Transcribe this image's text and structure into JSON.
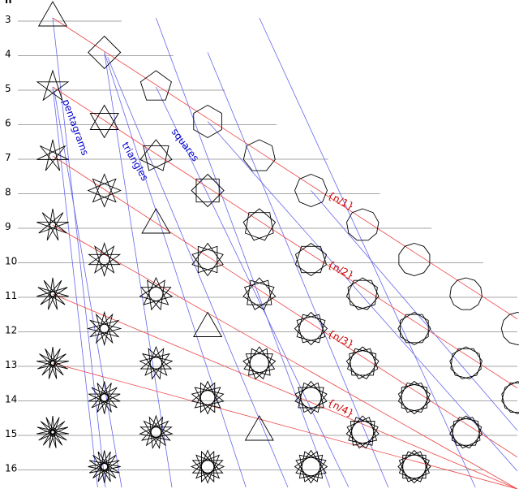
{
  "header": {
    "column_label": "n"
  },
  "rows": [
    {
      "n": 3,
      "label": "3",
      "figures": [
        [
          [
            3,
            1
          ]
        ]
      ]
    },
    {
      "n": 4,
      "label": "4",
      "figures": [
        [],
        [
          [
            4,
            1
          ]
        ]
      ]
    },
    {
      "n": 5,
      "label": "5",
      "figures": [
        [
          [
            5,
            2
          ]
        ],
        [],
        [
          [
            5,
            1
          ]
        ]
      ]
    },
    {
      "n": 6,
      "label": "6",
      "figures": [
        [],
        [
          [
            3,
            1
          ],
          [
            3,
            1
          ]
        ],
        [],
        [
          [
            6,
            1
          ]
        ]
      ]
    },
    {
      "n": 7,
      "label": "7",
      "figures": [
        [
          [
            7,
            3
          ]
        ],
        [],
        [
          [
            7,
            2
          ]
        ],
        [],
        [
          [
            7,
            1
          ]
        ]
      ]
    },
    {
      "n": 8,
      "label": "8",
      "figures": [
        [],
        [
          [
            8,
            3
          ]
        ],
        [],
        [
          [
            4,
            1
          ],
          [
            4,
            1
          ]
        ],
        [],
        [
          [
            8,
            1
          ]
        ]
      ]
    },
    {
      "n": 9,
      "label": "9",
      "figures": [
        [
          [
            9,
            4
          ]
        ],
        [],
        [
          [
            9,
            3
          ]
        ],
        [],
        [
          [
            9,
            2
          ]
        ],
        [],
        [
          [
            9,
            1
          ]
        ]
      ]
    },
    {
      "n": 10,
      "label": "10",
      "figures": [
        [],
        [
          [
            5,
            2
          ],
          [
            5,
            2
          ]
        ],
        [],
        [
          [
            10,
            3
          ]
        ],
        [],
        [
          [
            5,
            1
          ],
          [
            5,
            1
          ]
        ],
        [],
        [
          [
            10,
            1
          ]
        ]
      ]
    },
    {
      "n": 11,
      "label": "11",
      "figures": [
        [
          [
            11,
            5
          ]
        ],
        [],
        [
          [
            11,
            4
          ]
        ],
        [],
        [
          [
            11,
            3
          ]
        ],
        [],
        [
          [
            11,
            2
          ]
        ],
        [],
        [
          [
            11,
            1
          ]
        ]
      ]
    },
    {
      "n": 12,
      "label": "12",
      "figures": [
        [],
        [
          [
            12,
            5
          ]
        ],
        [],
        [
          [
            12,
            4
          ]
        ],
        [],
        [
          [
            4,
            1
          ],
          [
            4,
            1
          ],
          [
            4,
            1
          ]
        ],
        [],
        [
          [
            6,
            1
          ],
          [
            6,
            1
          ]
        ],
        [],
        [
          [
            12,
            1
          ]
        ]
      ]
    },
    {
      "n": 13,
      "label": "13",
      "figures": [
        [
          [
            13,
            6
          ]
        ],
        [],
        [
          [
            13,
            5
          ]
        ],
        [],
        [
          [
            13,
            4
          ]
        ],
        [],
        [
          [
            13,
            3
          ]
        ],
        [],
        [
          [
            13,
            2
          ]
        ]
      ]
    },
    {
      "n": 14,
      "label": "14",
      "figures": [
        [],
        [
          [
            7,
            3
          ],
          [
            7,
            3
          ]
        ],
        [],
        [
          [
            14,
            5
          ]
        ],
        [],
        [
          [
            7,
            2
          ],
          [
            7,
            2
          ]
        ],
        [],
        [
          [
            14,
            3
          ]
        ],
        [],
        [
          [
            7,
            1
          ],
          [
            7,
            1
          ]
        ]
      ]
    },
    {
      "n": 15,
      "label": "15",
      "figures": [
        [
          [
            15,
            7
          ]
        ],
        [],
        [
          [
            5,
            2
          ],
          [
            5,
            2
          ],
          [
            5,
            2
          ]
        ],
        [],
        [
          [
            15,
            5
          ]
        ],
        [],
        [
          [
            15,
            4
          ]
        ],
        [],
        [
          [
            5,
            1
          ],
          [
            5,
            1
          ],
          [
            5,
            1
          ]
        ]
      ]
    },
    {
      "n": 16,
      "label": "16",
      "figures": [
        [],
        [
          [
            16,
            7
          ]
        ],
        [],
        [
          [
            8,
            3
          ],
          [
            8,
            3
          ]
        ],
        [],
        [
          [
            16,
            5
          ]
        ],
        [],
        [
          [
            4,
            1
          ],
          [
            4,
            1
          ],
          [
            4,
            1
          ],
          [
            4,
            1
          ]
        ]
      ]
    }
  ],
  "family_labels": [
    {
      "text": "pentagrams"
    },
    {
      "text": "triangles"
    },
    {
      "text": "squares"
    }
  ],
  "density_labels": [
    {
      "text": "{n/1}"
    },
    {
      "text": "{n/2}"
    },
    {
      "text": "{n/3}"
    },
    {
      "text": "{n/4}"
    }
  ],
  "colors": {
    "row_line": "#888888",
    "family_line": "#6666ee",
    "density_line": "#ee4444",
    "figure_stroke": "#000000",
    "family_text": "#0000cc",
    "density_text": "#cc0000"
  }
}
